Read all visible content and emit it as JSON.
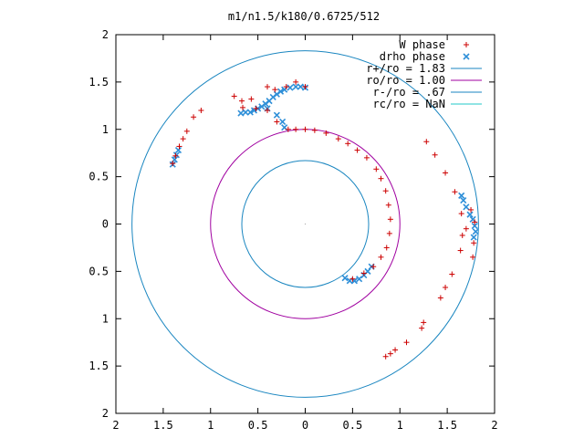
{
  "chart_data": {
    "type": "scatter",
    "title": "m1/n1.5/k180/0.6725/512",
    "xlim": [
      -2,
      2
    ],
    "ylim": [
      -2,
      2
    ],
    "x_tick_labels": [
      "2",
      "1.5",
      "1",
      "0.5",
      "0",
      "0.5",
      "1",
      "1.5",
      "2"
    ],
    "y_tick_labels": [
      "2",
      "1.5",
      "1",
      "0.5",
      "0",
      "0.5",
      "1",
      "1.5",
      "2"
    ],
    "grid": false,
    "legend_position": "top-right",
    "colors": {
      "w_phase": "#cc0000",
      "drho_phase": "#2e8fd8",
      "r_plus": "#1a86c0",
      "r_o": "#a000a0",
      "r_minus": "#1a86c0",
      "r_c": "#20c8c8"
    },
    "series": [
      {
        "name": "W phase",
        "marker": "+",
        "points": [
          [
            -1.4,
            0.64
          ],
          [
            -1.37,
            0.72
          ],
          [
            -1.33,
            0.82
          ],
          [
            -1.29,
            0.9
          ],
          [
            -1.25,
            0.98
          ],
          [
            -1.18,
            1.13
          ],
          [
            -1.1,
            1.2
          ],
          [
            -0.75,
            1.35
          ],
          [
            -0.67,
            1.3
          ],
          [
            -0.57,
            1.32
          ],
          [
            -0.4,
            1.45
          ],
          [
            -0.32,
            1.42
          ],
          [
            -0.2,
            1.45
          ],
          [
            -0.1,
            1.5
          ],
          [
            0.0,
            1.45
          ],
          [
            -0.66,
            1.23
          ],
          [
            -0.52,
            1.22
          ],
          [
            -0.4,
            1.2
          ],
          [
            -0.3,
            1.08
          ],
          [
            -0.18,
            1.0
          ],
          [
            -0.1,
            1.0
          ],
          [
            0.0,
            1.0
          ],
          [
            0.1,
            0.99
          ],
          [
            0.22,
            0.96
          ],
          [
            0.35,
            0.9
          ],
          [
            0.45,
            0.85
          ],
          [
            0.55,
            0.78
          ],
          [
            0.65,
            0.7
          ],
          [
            0.75,
            0.58
          ],
          [
            0.8,
            0.48
          ],
          [
            0.85,
            0.35
          ],
          [
            0.88,
            0.2
          ],
          [
            0.9,
            0.05
          ],
          [
            0.89,
            -0.1
          ],
          [
            0.86,
            -0.25
          ],
          [
            0.8,
            -0.35
          ],
          [
            0.72,
            -0.45
          ],
          [
            0.62,
            -0.52
          ],
          [
            0.5,
            -0.58
          ],
          [
            1.28,
            0.87
          ],
          [
            1.37,
            0.73
          ],
          [
            1.48,
            0.54
          ],
          [
            1.58,
            0.34
          ],
          [
            1.65,
            0.11
          ],
          [
            1.66,
            -0.12
          ],
          [
            1.64,
            -0.28
          ],
          [
            1.55,
            -0.53
          ],
          [
            1.48,
            -0.67
          ],
          [
            1.43,
            -0.78
          ],
          [
            1.25,
            -1.04
          ],
          [
            1.23,
            -1.1
          ],
          [
            1.07,
            -1.25
          ],
          [
            0.95,
            -1.33
          ],
          [
            0.9,
            -1.37
          ],
          [
            0.85,
            -1.4
          ],
          [
            1.7,
            -0.05
          ],
          [
            1.75,
            0.15
          ],
          [
            1.78,
            -0.2
          ],
          [
            1.79,
            0.02
          ],
          [
            1.77,
            -0.35
          ]
        ]
      },
      {
        "name": "drho phase",
        "marker": "x",
        "points": [
          [
            -1.4,
            0.63
          ],
          [
            -1.38,
            0.68
          ],
          [
            -1.36,
            0.73
          ],
          [
            -1.34,
            0.78
          ],
          [
            -0.68,
            1.17
          ],
          [
            -0.63,
            1.18
          ],
          [
            -0.58,
            1.18
          ],
          [
            -0.54,
            1.2
          ],
          [
            -0.5,
            1.22
          ],
          [
            -0.46,
            1.24
          ],
          [
            -0.42,
            1.27
          ],
          [
            -0.38,
            1.3
          ],
          [
            -0.34,
            1.34
          ],
          [
            -0.3,
            1.37
          ],
          [
            -0.26,
            1.4
          ],
          [
            -0.22,
            1.42
          ],
          [
            -0.16,
            1.44
          ],
          [
            -0.1,
            1.45
          ],
          [
            -0.05,
            1.45
          ],
          [
            0.0,
            1.44
          ],
          [
            -0.4,
            1.22
          ],
          [
            -0.3,
            1.15
          ],
          [
            -0.24,
            1.08
          ],
          [
            -0.22,
            1.02
          ],
          [
            0.42,
            -0.57
          ],
          [
            0.47,
            -0.6
          ],
          [
            0.52,
            -0.6
          ],
          [
            0.57,
            -0.58
          ],
          [
            0.62,
            -0.54
          ],
          [
            0.66,
            -0.5
          ],
          [
            0.7,
            -0.45
          ],
          [
            1.65,
            0.3
          ],
          [
            1.67,
            0.25
          ],
          [
            1.7,
            0.18
          ],
          [
            1.74,
            0.1
          ],
          [
            1.77,
            0.05
          ],
          [
            1.79,
            -0.02
          ],
          [
            1.8,
            -0.08
          ],
          [
            1.78,
            -0.14
          ]
        ]
      }
    ],
    "circles": [
      {
        "name": "r+/ro = 1.83",
        "radius": 1.83,
        "style": "solid"
      },
      {
        "name": "ro/ro = 1.00",
        "radius": 1.0,
        "style": "solid"
      },
      {
        "name": "r-/ro = .67",
        "radius": 0.67,
        "style": "solid"
      },
      {
        "name": "rc/ro = NaN",
        "radius": null,
        "style": "solid"
      }
    ]
  }
}
